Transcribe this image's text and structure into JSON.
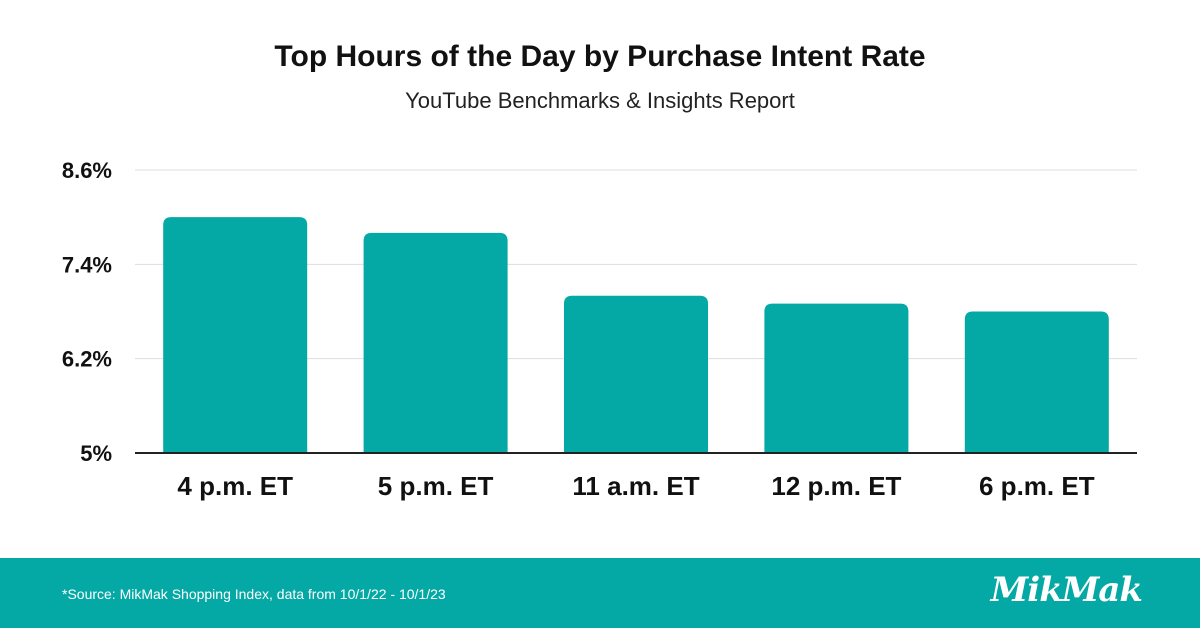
{
  "colors": {
    "bar": "#04a8a5",
    "footer": "#04a8a5",
    "grid": "#dddddd",
    "axis": "#222222",
    "text": "#111111"
  },
  "footer": {
    "source": "*Source: MikMak Shopping Index, data from 10/1/22 - 10/1/23",
    "logo": "MikMak"
  },
  "chart_data": {
    "type": "bar",
    "title": "Top Hours of the Day by Purchase Intent Rate",
    "subtitle": "YouTube Benchmarks & Insights Report",
    "xlabel": "",
    "ylabel": "",
    "categories": [
      "4 p.m. ET",
      "5 p.m. ET",
      "11 a.m. ET",
      "12 p.m. ET",
      "6 p.m. ET"
    ],
    "values": [
      8.0,
      7.8,
      7.0,
      6.9,
      6.8
    ],
    "ylim": [
      5,
      8.6
    ],
    "yticks": [
      5,
      6.2,
      7.4,
      8.6
    ],
    "ytick_labels": [
      "5%",
      "6.2%",
      "7.4%",
      "8.6%"
    ],
    "grid": true,
    "legend": "none"
  }
}
